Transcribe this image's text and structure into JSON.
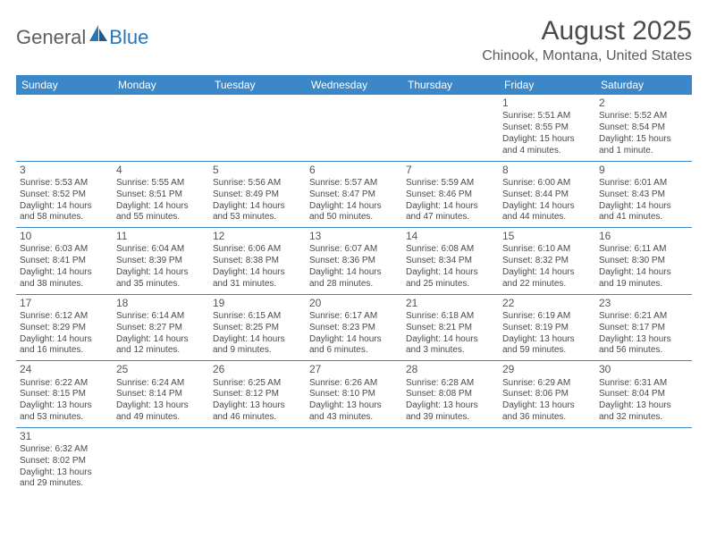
{
  "logo": {
    "text1": "General",
    "text2": "Blue"
  },
  "title": "August 2025",
  "subtitle": "Chinook, Montana, United States",
  "colors": {
    "header_bg": "#3b87c8",
    "header_text": "#ffffff",
    "border": "#3b87c8",
    "body_text": "#4a4a4a",
    "logo_gray": "#5e5e5e",
    "logo_blue": "#2676b8"
  },
  "dayHeaders": [
    "Sunday",
    "Monday",
    "Tuesday",
    "Wednesday",
    "Thursday",
    "Friday",
    "Saturday"
  ],
  "weeks": [
    [
      null,
      null,
      null,
      null,
      null,
      {
        "n": "1",
        "sr": "Sunrise: 5:51 AM",
        "ss": "Sunset: 8:55 PM",
        "d1": "Daylight: 15 hours",
        "d2": "and 4 minutes."
      },
      {
        "n": "2",
        "sr": "Sunrise: 5:52 AM",
        "ss": "Sunset: 8:54 PM",
        "d1": "Daylight: 15 hours",
        "d2": "and 1 minute."
      }
    ],
    [
      {
        "n": "3",
        "sr": "Sunrise: 5:53 AM",
        "ss": "Sunset: 8:52 PM",
        "d1": "Daylight: 14 hours",
        "d2": "and 58 minutes."
      },
      {
        "n": "4",
        "sr": "Sunrise: 5:55 AM",
        "ss": "Sunset: 8:51 PM",
        "d1": "Daylight: 14 hours",
        "d2": "and 55 minutes."
      },
      {
        "n": "5",
        "sr": "Sunrise: 5:56 AM",
        "ss": "Sunset: 8:49 PM",
        "d1": "Daylight: 14 hours",
        "d2": "and 53 minutes."
      },
      {
        "n": "6",
        "sr": "Sunrise: 5:57 AM",
        "ss": "Sunset: 8:47 PM",
        "d1": "Daylight: 14 hours",
        "d2": "and 50 minutes."
      },
      {
        "n": "7",
        "sr": "Sunrise: 5:59 AM",
        "ss": "Sunset: 8:46 PM",
        "d1": "Daylight: 14 hours",
        "d2": "and 47 minutes."
      },
      {
        "n": "8",
        "sr": "Sunrise: 6:00 AM",
        "ss": "Sunset: 8:44 PM",
        "d1": "Daylight: 14 hours",
        "d2": "and 44 minutes."
      },
      {
        "n": "9",
        "sr": "Sunrise: 6:01 AM",
        "ss": "Sunset: 8:43 PM",
        "d1": "Daylight: 14 hours",
        "d2": "and 41 minutes."
      }
    ],
    [
      {
        "n": "10",
        "sr": "Sunrise: 6:03 AM",
        "ss": "Sunset: 8:41 PM",
        "d1": "Daylight: 14 hours",
        "d2": "and 38 minutes."
      },
      {
        "n": "11",
        "sr": "Sunrise: 6:04 AM",
        "ss": "Sunset: 8:39 PM",
        "d1": "Daylight: 14 hours",
        "d2": "and 35 minutes."
      },
      {
        "n": "12",
        "sr": "Sunrise: 6:06 AM",
        "ss": "Sunset: 8:38 PM",
        "d1": "Daylight: 14 hours",
        "d2": "and 31 minutes."
      },
      {
        "n": "13",
        "sr": "Sunrise: 6:07 AM",
        "ss": "Sunset: 8:36 PM",
        "d1": "Daylight: 14 hours",
        "d2": "and 28 minutes."
      },
      {
        "n": "14",
        "sr": "Sunrise: 6:08 AM",
        "ss": "Sunset: 8:34 PM",
        "d1": "Daylight: 14 hours",
        "d2": "and 25 minutes."
      },
      {
        "n": "15",
        "sr": "Sunrise: 6:10 AM",
        "ss": "Sunset: 8:32 PM",
        "d1": "Daylight: 14 hours",
        "d2": "and 22 minutes."
      },
      {
        "n": "16",
        "sr": "Sunrise: 6:11 AM",
        "ss": "Sunset: 8:30 PM",
        "d1": "Daylight: 14 hours",
        "d2": "and 19 minutes."
      }
    ],
    [
      {
        "n": "17",
        "sr": "Sunrise: 6:12 AM",
        "ss": "Sunset: 8:29 PM",
        "d1": "Daylight: 14 hours",
        "d2": "and 16 minutes."
      },
      {
        "n": "18",
        "sr": "Sunrise: 6:14 AM",
        "ss": "Sunset: 8:27 PM",
        "d1": "Daylight: 14 hours",
        "d2": "and 12 minutes."
      },
      {
        "n": "19",
        "sr": "Sunrise: 6:15 AM",
        "ss": "Sunset: 8:25 PM",
        "d1": "Daylight: 14 hours",
        "d2": "and 9 minutes."
      },
      {
        "n": "20",
        "sr": "Sunrise: 6:17 AM",
        "ss": "Sunset: 8:23 PM",
        "d1": "Daylight: 14 hours",
        "d2": "and 6 minutes."
      },
      {
        "n": "21",
        "sr": "Sunrise: 6:18 AM",
        "ss": "Sunset: 8:21 PM",
        "d1": "Daylight: 14 hours",
        "d2": "and 3 minutes."
      },
      {
        "n": "22",
        "sr": "Sunrise: 6:19 AM",
        "ss": "Sunset: 8:19 PM",
        "d1": "Daylight: 13 hours",
        "d2": "and 59 minutes."
      },
      {
        "n": "23",
        "sr": "Sunrise: 6:21 AM",
        "ss": "Sunset: 8:17 PM",
        "d1": "Daylight: 13 hours",
        "d2": "and 56 minutes."
      }
    ],
    [
      {
        "n": "24",
        "sr": "Sunrise: 6:22 AM",
        "ss": "Sunset: 8:15 PM",
        "d1": "Daylight: 13 hours",
        "d2": "and 53 minutes."
      },
      {
        "n": "25",
        "sr": "Sunrise: 6:24 AM",
        "ss": "Sunset: 8:14 PM",
        "d1": "Daylight: 13 hours",
        "d2": "and 49 minutes."
      },
      {
        "n": "26",
        "sr": "Sunrise: 6:25 AM",
        "ss": "Sunset: 8:12 PM",
        "d1": "Daylight: 13 hours",
        "d2": "and 46 minutes."
      },
      {
        "n": "27",
        "sr": "Sunrise: 6:26 AM",
        "ss": "Sunset: 8:10 PM",
        "d1": "Daylight: 13 hours",
        "d2": "and 43 minutes."
      },
      {
        "n": "28",
        "sr": "Sunrise: 6:28 AM",
        "ss": "Sunset: 8:08 PM",
        "d1": "Daylight: 13 hours",
        "d2": "and 39 minutes."
      },
      {
        "n": "29",
        "sr": "Sunrise: 6:29 AM",
        "ss": "Sunset: 8:06 PM",
        "d1": "Daylight: 13 hours",
        "d2": "and 36 minutes."
      },
      {
        "n": "30",
        "sr": "Sunrise: 6:31 AM",
        "ss": "Sunset: 8:04 PM",
        "d1": "Daylight: 13 hours",
        "d2": "and 32 minutes."
      }
    ],
    [
      {
        "n": "31",
        "sr": "Sunrise: 6:32 AM",
        "ss": "Sunset: 8:02 PM",
        "d1": "Daylight: 13 hours",
        "d2": "and 29 minutes."
      },
      null,
      null,
      null,
      null,
      null,
      null
    ]
  ]
}
